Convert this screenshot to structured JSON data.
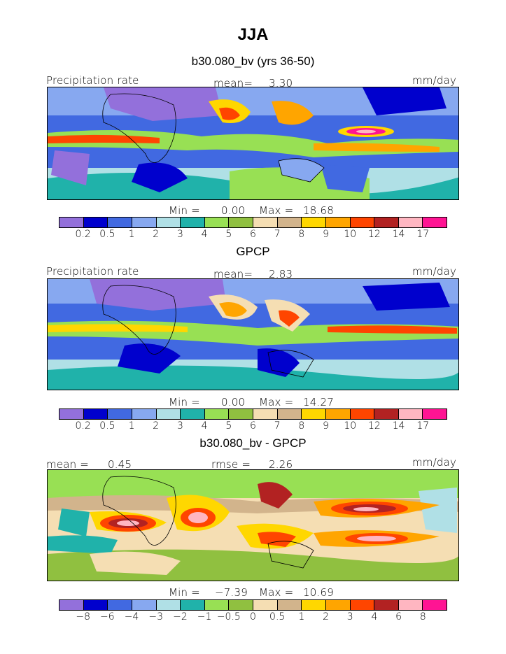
{
  "title": "JJA",
  "panel1": {
    "subtitle": "b30.080_bv (yrs 36-50)",
    "field": "Precipitation rate",
    "mean_label": "mean=",
    "mean": "3.30",
    "units": "mm/day",
    "min_label": "Min =",
    "min": "0.00",
    "max_label": "Max =",
    "max": "18.68"
  },
  "panel2": {
    "subtitle": "GPCP",
    "field": "Precipitation rate",
    "mean_label": "mean=",
    "mean": "2.83",
    "units": "mm/day",
    "min_label": "Min =",
    "min": "0.00",
    "max_label": "Max =",
    "max": "14.27"
  },
  "panel3": {
    "subtitle": "b30.080_bv - GPCP",
    "mean_label": "mean =",
    "mean": "0.45",
    "rmse_label": "rmse =",
    "rmse": "2.26",
    "units": "mm/day",
    "min_label": "Min =",
    "min": "−7.39",
    "max_label": "Max =",
    "max": "10.69"
  },
  "precip_colorbar": {
    "colors": [
      "#9370db",
      "#0000cd",
      "#4169e1",
      "#87a8f0",
      "#b0e0e6",
      "#20b2aa",
      "#98e054",
      "#90c040",
      "#f5deb3",
      "#d2b48c",
      "#ffd700",
      "#ffa500",
      "#ff4500",
      "#b22222",
      "#ffb6c1",
      "#ff1493"
    ],
    "ticks": [
      "0.2",
      "0.5",
      "1",
      "2",
      "3",
      "4",
      "5",
      "6",
      "7",
      "8",
      "9",
      "10",
      "12",
      "14",
      "17"
    ]
  },
  "diff_colorbar": {
    "colors": [
      "#9370db",
      "#0000cd",
      "#4169e1",
      "#87a8f0",
      "#b0e0e6",
      "#20b2aa",
      "#98e054",
      "#90c040",
      "#f5deb3",
      "#d2b48c",
      "#ffd700",
      "#ffa500",
      "#ff4500",
      "#b22222",
      "#ffb6c1",
      "#ff1493"
    ],
    "ticks": [
      "−8",
      "−6",
      "−4",
      "−3",
      "−2",
      "−1",
      "−0.5",
      "0",
      "0.5",
      "1",
      "2",
      "3",
      "4",
      "6",
      "8"
    ]
  }
}
